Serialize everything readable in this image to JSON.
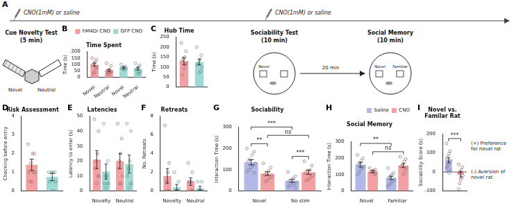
{
  "diagram": {
    "panel": "A",
    "injections": [
      "CNO(1mM) or saline",
      "CNO(1mM) or saline"
    ],
    "tests": [
      {
        "name": "Cue Novelty Test",
        "duration": "(5 min)",
        "arms": [
          "Novel",
          "Neutral"
        ]
      },
      {
        "name": "Sociability Test",
        "duration": "(10 min)",
        "labels": [
          "Novel"
        ]
      },
      {
        "name": "Social Memory",
        "duration": "(10 min)",
        "labels": [
          "Novel",
          "Familiar"
        ]
      }
    ],
    "interval": "20 min"
  },
  "chart_data": [
    {
      "panel": "B",
      "type": "bar",
      "title": "Time Spent",
      "categories": [
        "Novel",
        "Neutral",
        "Novel",
        "Neutral"
      ],
      "series": [
        {
          "name": "hM4Di CNO",
          "color": "#f3a0a4",
          "values": [
            100,
            55,
            null,
            null
          ],
          "errors": [
            12,
            8,
            null,
            null
          ],
          "points": [
            [
              150,
              140,
              120,
              110,
              95,
              80,
              70,
              40,
              30
            ],
            [
              110,
              90,
              60,
              55,
              50,
              45,
              40,
              30,
              25
            ],
            null,
            null
          ]
        },
        {
          "name": "GFP CNO",
          "color": "#9fd9d3",
          "values": [
            null,
            null,
            75,
            68
          ],
          "errors": [
            null,
            null,
            7,
            11
          ],
          "points": [
            null,
            null,
            [
              100,
              85,
              80,
              75,
              72,
              70,
              65,
              60
            ],
            [
              110,
              95,
              80,
              70,
              60,
              45,
              35,
              30
            ]
          ]
        }
      ],
      "ylabel": "Time (s)",
      "ylim": [
        0,
        200
      ],
      "yticks": [
        0,
        50,
        100,
        150,
        200
      ],
      "grid": false,
      "legend": "top-right"
    },
    {
      "panel": "C",
      "type": "bar",
      "title": "Hub Time",
      "categories": [
        null,
        null
      ],
      "values": [
        130,
        125
      ],
      "colors": [
        "#f3a0a4",
        "#9fd9d3"
      ],
      "errors": [
        18,
        14
      ],
      "points": [
        [
          220,
          180,
          150,
          140,
          130,
          120,
          110,
          90,
          60
        ],
        [
          200,
          160,
          140,
          120,
          110,
          100,
          80,
          70
        ]
      ],
      "ylabel": "Time (s)",
      "ylim": [
        0,
        250
      ],
      "yticks": [
        0,
        50,
        100,
        150,
        200,
        250
      ],
      "grid": false
    },
    {
      "panel": "D",
      "type": "bar",
      "title": "Risk Assessment",
      "categories": [
        null,
        null
      ],
      "values": [
        1.4,
        0.75
      ],
      "colors": [
        "#f3a0a4",
        "#9fd9d3"
      ],
      "errors": [
        0.3,
        0.2
      ],
      "points": [
        [
          2.5,
          2,
          2,
          1.5,
          1,
          1,
          1,
          0.5,
          0.5
        ],
        [
          1,
          1,
          1,
          1,
          0.5,
          0.5,
          0,
          0
        ]
      ],
      "ylabel": "Checking before entry",
      "ylim": [
        0,
        4
      ],
      "yticks": [
        0,
        1,
        2,
        3,
        4
      ],
      "grid": false
    },
    {
      "panel": "E",
      "type": "bar",
      "title": "Latencies",
      "categories": [
        "Novelty",
        "Neutral"
      ],
      "series": [
        {
          "color": "#f3a0a4",
          "values": [
            21,
            20
          ],
          "errors": [
            6,
            5
          ],
          "points": [
            [
              48,
              40,
              25,
              20,
              15,
              10,
              10,
              5
            ],
            [
              45,
              35,
              25,
              20,
              15,
              10,
              5,
              5
            ]
          ]
        },
        {
          "color": "#9fd9d3",
          "values": [
            13,
            18
          ],
          "errors": [
            5,
            6
          ],
          "points": [
            [
              45,
              20,
              10,
              10,
              5,
              5,
              5,
              2
            ],
            [
              45,
              40,
              20,
              15,
              10,
              5,
              5,
              2
            ]
          ]
        }
      ],
      "ylabel": "Latency to enter (s)",
      "ylim": [
        0,
        50
      ],
      "yticks": [
        0,
        10,
        20,
        30,
        40,
        50
      ],
      "grid": false
    },
    {
      "panel": "F",
      "type": "bar",
      "title": "Retreats",
      "categories": [
        "Novelty",
        "Neutral"
      ],
      "series": [
        {
          "color": "#f3a0a4",
          "values": [
            1.6,
            1.0
          ],
          "errors": [
            0.8,
            0.4
          ],
          "points": [
            [
              7,
              3,
              2,
              1,
              0,
              0,
              0,
              0
            ],
            [
              3,
              2,
              1,
              1,
              1,
              0,
              0,
              0
            ]
          ]
        },
        {
          "color": "#9fd9d3",
          "values": [
            0.4,
            0.3
          ],
          "errors": [
            0.3,
            0.2
          ],
          "points": [
            [
              2,
              1,
              0,
              0,
              0,
              0,
              0
            ],
            [
              1,
              1,
              0,
              0,
              0,
              0,
              0
            ]
          ]
        }
      ],
      "ylabel": "No. Retreats",
      "ylim": [
        0,
        8
      ],
      "yticks": [
        0,
        2,
        4,
        6,
        8
      ],
      "grid": false
    },
    {
      "panel": "G",
      "type": "bar",
      "title": "Sociability",
      "categories": [
        "Novel",
        "No stim"
      ],
      "series": [
        {
          "name": "Saline",
          "color": "#b3b8e6",
          "values": [
            135,
            48
          ],
          "errors": [
            12,
            7
          ],
          "points": [
            [
              200,
              185,
              170,
              150,
              140,
              130,
              120,
              110,
              100,
              90,
              85
            ],
            [
              90,
              70,
              60,
              50,
              45,
              40,
              35,
              30,
              25,
              20,
              15
            ]
          ]
        },
        {
          "name": "CNO",
          "color": "#f3a0a4",
          "values": [
            82,
            88
          ],
          "errors": [
            9,
            10
          ],
          "points": [
            [
              130,
              110,
              95,
              85,
              75,
              70,
              60,
              50,
              45
            ],
            [
              140,
              120,
              100,
              95,
              85,
              75,
              65,
              55,
              50
            ]
          ]
        }
      ],
      "comparisons": [
        {
          "between": [
            [
              0,
              0
            ],
            [
              0,
              1
            ]
          ],
          "label": "**"
        },
        {
          "between": [
            [
              1,
              0
            ],
            [
              1,
              1
            ]
          ],
          "label": "***"
        },
        {
          "between": [
            [
              0,
              1
            ],
            [
              1,
              1
            ]
          ],
          "label": "ns"
        },
        {
          "between": [
            [
              0,
              0
            ],
            [
              1,
              0
            ]
          ],
          "label": "***"
        }
      ],
      "ylabel": "Interaction Time (s)",
      "ylim": [
        0,
        300
      ],
      "yticks": [
        0,
        100,
        200,
        300
      ],
      "grid": false
    },
    {
      "panel": "H",
      "type": "bar",
      "title": "Social Memory",
      "categories": [
        "Novel",
        "Familiar"
      ],
      "series": [
        {
          "name": "Saline",
          "color": "#b3b8e6",
          "values": [
            160,
            80
          ],
          "errors": [
            14,
            10
          ],
          "points": [
            [
              220,
              200,
              185,
              170,
              160,
              150,
              140,
              130,
              110,
              100
            ],
            [
              140,
              110,
              100,
              90,
              80,
              70,
              60,
              50,
              40,
              30
            ]
          ]
        },
        {
          "name": "CNO",
          "color": "#f3a0a4",
          "values": [
            118,
            155
          ],
          "errors": [
            7,
            12
          ],
          "points": [
            [
              140,
              130,
              125,
              120,
              115,
              110,
              100
            ],
            [
              210,
              195,
              180,
              160,
              150,
              140,
              120,
              100
            ]
          ]
        }
      ],
      "comparisons": [
        {
          "between": [
            [
              0,
              1
            ],
            [
              1,
              1
            ]
          ],
          "label": "ns"
        },
        {
          "between": [
            [
              0,
              0
            ],
            [
              1,
              0
            ]
          ],
          "label": "**"
        }
      ],
      "ylabel": "Interaction Time (s)",
      "ylim": [
        0,
        300
      ],
      "yticks": [
        0,
        100,
        200,
        300
      ],
      "grid": false,
      "legend": "top-right"
    },
    {
      "panel": "I",
      "type": "bar",
      "title": "Novel vs. Familar Rat",
      "categories": [
        null,
        null
      ],
      "values": [
        62,
        -12
      ],
      "colors": [
        "#b3b8e6",
        "#f3a0a4"
      ],
      "errors": [
        13,
        15
      ],
      "points": [
        [
          150,
          110,
          95,
          80,
          70,
          60,
          50,
          40,
          30,
          20,
          10,
          -5
        ],
        [
          40,
          25,
          10,
          0,
          -10,
          -20,
          -30,
          -40,
          -60,
          -90
        ]
      ],
      "comparisons": [
        {
          "between": [
            [
              0,
              0
            ],
            [
              1,
              0
            ]
          ],
          "label": "***"
        }
      ],
      "annotations": [
        "(+) Preference for novel rat",
        "(-) Aversion of novel rat"
      ],
      "ylabel": "Sociability Score (s)",
      "ylim": [
        -100,
        200
      ],
      "yticks": [
        -100,
        0,
        100,
        200
      ],
      "grid": false
    }
  ]
}
